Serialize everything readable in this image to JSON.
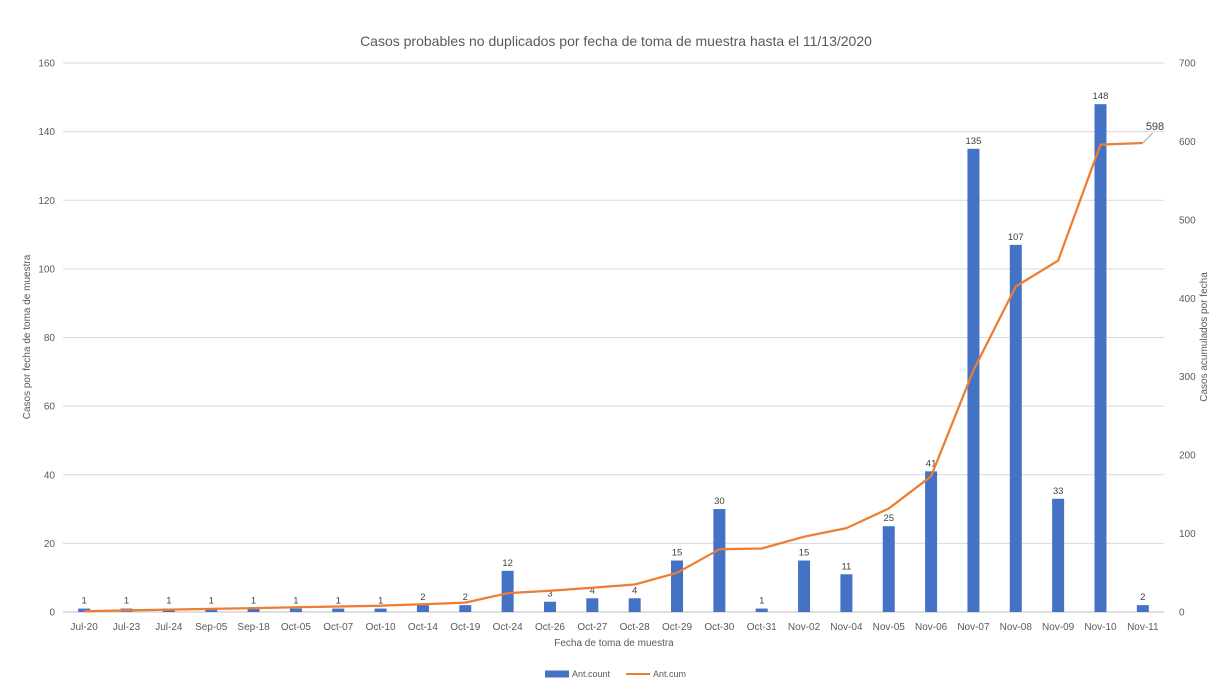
{
  "chart_data": {
    "type": "bar",
    "title": "Casos probables no duplicados por fecha de toma de muestra hasta el 11/13/2020",
    "xlabel": "Fecha de toma de muestra",
    "ylabel": "Casos por fecha de toma de muestra",
    "y2label": "Casos acumulados por fecha",
    "categories": [
      "Jul-20",
      "Jul-23",
      "Jul-24",
      "Sep-05",
      "Sep-18",
      "Oct-05",
      "Oct-07",
      "Oct-10",
      "Oct-14",
      "Oct-19",
      "Oct-24",
      "Oct-26",
      "Oct-27",
      "Oct-28",
      "Oct-29",
      "Oct-30",
      "Oct-31",
      "Nov-02",
      "Nov-04",
      "Nov-05",
      "Nov-06",
      "Nov-07",
      "Nov-08",
      "Nov-09",
      "Nov-10",
      "Nov-11"
    ],
    "ylim": [
      0,
      160
    ],
    "y_ticks": [
      "0",
      "20",
      "40",
      "60",
      "80",
      "100",
      "120",
      "140",
      "160"
    ],
    "y2lim": [
      0,
      700
    ],
    "y2_ticks": [
      "0",
      "100",
      "200",
      "300",
      "400",
      "500",
      "600",
      "700"
    ],
    "grid": true,
    "legend_position": "bottom",
    "series": [
      {
        "name": "Ant.count",
        "type": "bar",
        "axis": "left",
        "color": "#4472C4",
        "values": [
          1,
          1,
          1,
          1,
          1,
          1,
          1,
          1,
          2,
          2,
          12,
          3,
          4,
          4,
          15,
          30,
          1,
          15,
          11,
          25,
          41,
          135,
          107,
          33,
          148,
          2
        ],
        "labels": [
          "1",
          "1",
          "1",
          "1",
          "1",
          "1",
          "1",
          "1",
          "2",
          "2",
          "12",
          "3",
          "4",
          "4",
          "15",
          "30",
          "1",
          "15",
          "11",
          "25",
          "41",
          "135",
          "107",
          "33",
          "148",
          "2"
        ]
      },
      {
        "name": "Ant.cum",
        "type": "line",
        "axis": "right",
        "color": "#ED7D31",
        "values": [
          1,
          2,
          3,
          4,
          5,
          6,
          7,
          8,
          10,
          12,
          24,
          27,
          31,
          35,
          50,
          80,
          81,
          96,
          107,
          132,
          173,
          308,
          415,
          448,
          596,
          598
        ],
        "end_label": "598"
      }
    ]
  }
}
